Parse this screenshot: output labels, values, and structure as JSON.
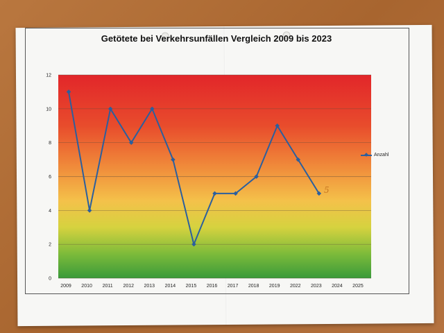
{
  "chart_data": {
    "type": "line",
    "title": "Getötete bei Verkehrsunfällen Vergleich 2009 bis 2023",
    "xlabel": "",
    "ylabel": "",
    "categories": [
      "2009",
      "2010",
      "2011",
      "2012",
      "2013",
      "2014",
      "2015",
      "2016",
      "2017",
      "2018",
      "2019",
      "2022",
      "2023",
      "2024",
      "2025"
    ],
    "y_ticks": [
      0,
      2,
      4,
      6,
      8,
      10,
      12
    ],
    "ylim": [
      0,
      12
    ],
    "grid": true,
    "legend": "right",
    "series": [
      {
        "name": "Anzahl",
        "color": "#2b5f9e",
        "values": [
          11,
          4,
          10,
          8,
          10,
          7,
          2,
          5,
          5,
          6,
          9,
          7,
          5,
          null,
          null
        ]
      }
    ],
    "annotation": "5"
  }
}
